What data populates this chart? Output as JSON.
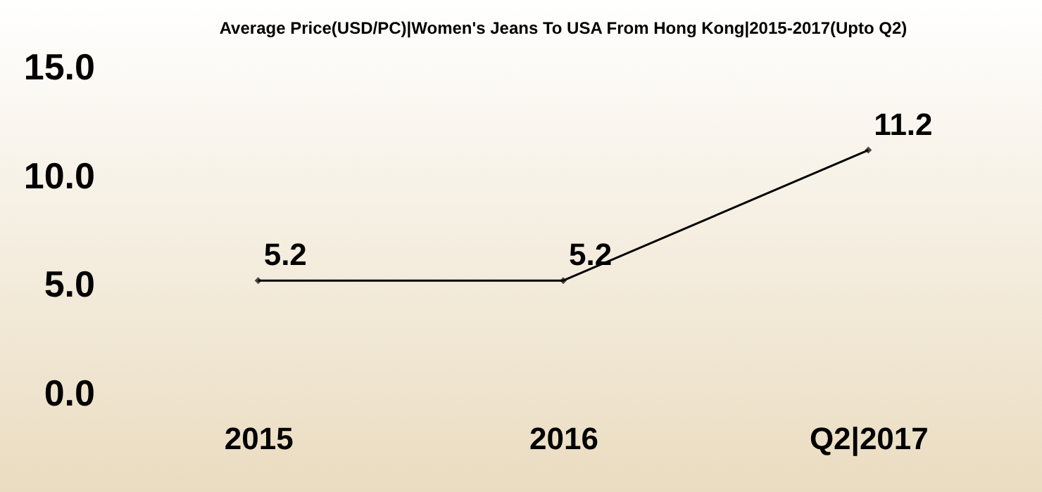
{
  "chart_data": {
    "type": "line",
    "title": "Average Price(USD/PC)|Women's Jeans To USA From Hong Kong|2015-2017(Upto Q2)",
    "categories": [
      "2015",
      "2016",
      "Q2|2017"
    ],
    "series": [
      {
        "color": "#000000",
        "values": [
          5.2,
          5.2,
          11.2
        ]
      }
    ],
    "ylim": [
      0,
      15
    ],
    "yticks": [
      {
        "value": 0,
        "label": "0.0"
      },
      {
        "value": 5,
        "label": "5.0"
      },
      {
        "value": 10,
        "label": "10.0"
      },
      {
        "value": 15,
        "label": "15.0"
      }
    ],
    "data_labels": true,
    "grid": false,
    "marker": "diamond",
    "line_style": "solid"
  }
}
